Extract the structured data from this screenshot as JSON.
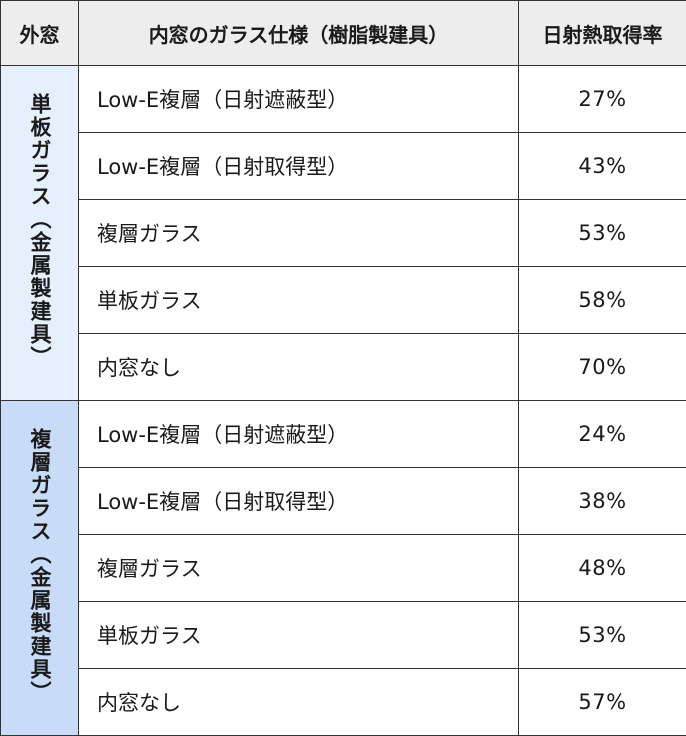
{
  "headers": {
    "outer": "外窓",
    "inner": "内窓のガラス仕様（樹脂製建具）",
    "rate": "日射熱取得率"
  },
  "groups": [
    {
      "label": "単板ガラス（金属製建具）",
      "rows": [
        {
          "spec": "Low-E複層（日射遮蔽型）",
          "rate": "27%"
        },
        {
          "spec": "Low-E複層（日射取得型）",
          "rate": "43%"
        },
        {
          "spec": "複層ガラス",
          "rate": "53%"
        },
        {
          "spec": "単板ガラス",
          "rate": "58%"
        },
        {
          "spec": "内窓なし",
          "rate": "70%"
        }
      ]
    },
    {
      "label": "複層ガラス（金属製建具）",
      "rows": [
        {
          "spec": "Low-E複層（日射遮蔽型）",
          "rate": "24%"
        },
        {
          "spec": "Low-E複層（日射取得型）",
          "rate": "38%"
        },
        {
          "spec": "複層ガラス",
          "rate": "48%"
        },
        {
          "spec": "単板ガラス",
          "rate": "53%"
        },
        {
          "spec": "内窓なし",
          "rate": "57%"
        }
      ]
    }
  ],
  "colors": {
    "header_bg": "#ededed",
    "group1_bg": "#e6f0fd",
    "group2_bg": "#c9dcf7",
    "border": "#333333"
  }
}
